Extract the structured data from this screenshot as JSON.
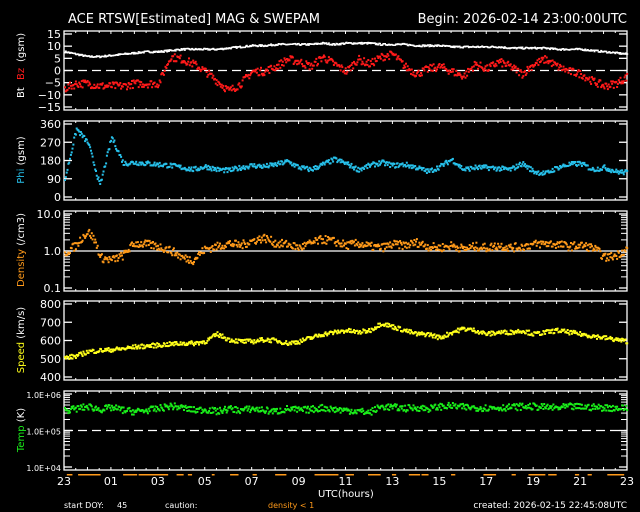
{
  "header": {
    "title": "ACE RTSW[Estimated] MAG & SWEPAM",
    "begin": "Begin: 2026-02-14 23:00:00UTC"
  },
  "footer": {
    "start_doy_label": "start DOY:",
    "start_doy_value": "45",
    "caution_label": "caution:",
    "caution_item": "density < 1",
    "created": "created: 2026-02-15 22:45:08UTC",
    "xlabel": "UTC(hours)"
  },
  "colors": {
    "background": "#000000",
    "axes": "#ffffff",
    "bt": "#ffffff",
    "bz": "#ff1a1a",
    "phi": "#27c0ea",
    "density": "#ff9a1a",
    "speed": "#ffff1a",
    "temp": "#1aee1a",
    "caution": "#ff9a1a"
  },
  "chart_data": [
    {
      "type": "scatter",
      "panel": "mag",
      "ylabel_parts": [
        "Bt",
        "Bz",
        "(gsm)"
      ],
      "ylabel_colors": [
        "#ffffff",
        "#ff1a1a",
        "#ffffff"
      ],
      "yticks": [
        15,
        10,
        5,
        0,
        -5,
        -10,
        -15
      ],
      "ylim": [
        -15,
        15
      ],
      "reference_line": {
        "y": 0,
        "style": "dashed"
      },
      "x_hours": [
        0,
        0.5,
        1,
        1.5,
        2,
        2.5,
        3,
        3.5,
        4,
        4.5,
        5,
        5.5,
        6,
        6.5,
        7,
        7.5,
        8,
        8.5,
        9,
        9.5,
        10,
        10.5,
        11,
        11.5,
        12,
        12.5,
        13,
        13.5,
        14,
        14.5,
        15,
        15.5,
        16,
        16.5,
        17,
        17.5,
        18,
        18.5,
        19,
        19.5,
        20,
        20.5,
        21,
        21.5,
        22,
        22.5,
        23,
        23.5,
        24
      ],
      "series": [
        {
          "name": "Bt",
          "values": [
            8,
            7,
            6,
            6,
            6.5,
            7,
            7.5,
            8,
            8,
            8.5,
            9,
            9,
            9,
            9,
            9.5,
            10,
            10.5,
            10.5,
            11,
            11,
            11,
            11,
            11.5,
            11,
            11.5,
            11.5,
            11.5,
            11,
            11,
            11,
            10.5,
            10.5,
            10.5,
            10,
            10,
            10,
            10,
            10,
            9.5,
            9.5,
            9.5,
            9.5,
            9,
            9,
            9,
            8.5,
            8,
            7.5,
            7
          ]
        },
        {
          "name": "Bz",
          "values": [
            -7,
            -5,
            -5,
            -6,
            -6,
            -6,
            -5,
            -5,
            -5,
            6,
            5,
            3,
            0,
            -4,
            -8,
            -5,
            0,
            0,
            2,
            5,
            4,
            2,
            6,
            3,
            0,
            5,
            3,
            6,
            7,
            2,
            -1,
            1,
            2,
            0,
            -2,
            3,
            1,
            4,
            2,
            -1,
            3,
            5,
            2,
            0,
            -1,
            -4,
            -6,
            -5,
            -2
          ]
        }
      ]
    },
    {
      "type": "scatter",
      "panel": "phi",
      "ylabel": "Phi (gsm)",
      "yticks": [
        360,
        270,
        180,
        90,
        0
      ],
      "ylim": [
        0,
        360
      ],
      "x_hours": [
        0,
        0.5,
        1,
        1.5,
        2,
        2.5,
        3,
        3.5,
        4,
        4.5,
        5,
        5.5,
        6,
        6.5,
        7,
        7.5,
        8,
        8.5,
        9,
        9.5,
        10,
        10.5,
        11,
        11.5,
        12,
        12.5,
        13,
        13.5,
        14,
        14.5,
        15,
        15.5,
        16,
        16.5,
        17,
        17.5,
        18,
        18.5,
        19,
        19.5,
        20,
        20.5,
        21,
        21.5,
        22,
        22.5,
        23,
        23.5,
        24
      ],
      "values": [
        90,
        340,
        270,
        60,
        300,
        170,
        175,
        170,
        165,
        160,
        150,
        140,
        155,
        140,
        135,
        150,
        160,
        155,
        165,
        180,
        150,
        140,
        165,
        190,
        170,
        140,
        160,
        175,
        160,
        165,
        150,
        130,
        155,
        190,
        140,
        150,
        150,
        145,
        140,
        170,
        130,
        120,
        150,
        165,
        170,
        140,
        150,
        130,
        125
      ]
    },
    {
      "type": "scatter",
      "panel": "density",
      "ylabel": "Density (/cm3)",
      "yscale": "log",
      "yticks": [
        10.0,
        1.0,
        0.1
      ],
      "ytick_labels": [
        "10.0",
        "1.0",
        "0.1"
      ],
      "ylim": [
        0.1,
        10.0
      ],
      "reference_line": {
        "y": 1.0,
        "style": "solid"
      },
      "x_hours": [
        0,
        0.5,
        1,
        1.5,
        2,
        2.5,
        3,
        3.5,
        4,
        4.5,
        5,
        5.5,
        6,
        6.5,
        7,
        7.5,
        8,
        8.5,
        9,
        9.5,
        10,
        10.5,
        11,
        11.5,
        12,
        12.5,
        13,
        13.5,
        14,
        14.5,
        15,
        15.5,
        16,
        16.5,
        17,
        17.5,
        18,
        18.5,
        19,
        19.5,
        20,
        20.5,
        21,
        21.5,
        22,
        22.5,
        23,
        23.5,
        24
      ],
      "values": [
        0.9,
        1.5,
        3.5,
        0.7,
        0.6,
        0.8,
        1.7,
        1.6,
        1.4,
        1.1,
        0.7,
        0.6,
        1.2,
        1.4,
        1.7,
        1.5,
        2.0,
        2.4,
        1.7,
        1.6,
        1.3,
        1.7,
        2.2,
        1.9,
        1.5,
        1.7,
        1.4,
        1.3,
        1.6,
        1.5,
        1.8,
        1.4,
        1.3,
        1.5,
        1.2,
        1.4,
        1.3,
        1.5,
        1.3,
        1.4,
        1.6,
        1.7,
        1.6,
        1.4,
        1.5,
        1.3,
        0.7,
        0.8,
        1.2
      ]
    },
    {
      "type": "scatter",
      "panel": "speed",
      "ylabel": "Speed (km/s)",
      "yticks": [
        800,
        700,
        600,
        500,
        400
      ],
      "ylim": [
        400,
        800
      ],
      "x_hours": [
        0,
        0.5,
        1,
        1.5,
        2,
        2.5,
        3,
        3.5,
        4,
        4.5,
        5,
        5.5,
        6,
        6.5,
        7,
        7.5,
        8,
        8.5,
        9,
        9.5,
        10,
        10.5,
        11,
        11.5,
        12,
        12.5,
        13,
        13.5,
        14,
        14.5,
        15,
        15.5,
        16,
        16.5,
        17,
        17.5,
        18,
        18.5,
        19,
        19.5,
        20,
        20.5,
        21,
        21.5,
        22,
        22.5,
        23,
        23.5,
        24
      ],
      "values": [
        510,
        520,
        545,
        550,
        555,
        560,
        570,
        575,
        580,
        585,
        590,
        590,
        600,
        640,
        610,
        600,
        600,
        610,
        605,
        590,
        600,
        620,
        640,
        650,
        660,
        650,
        660,
        700,
        680,
        660,
        640,
        640,
        620,
        650,
        670,
        660,
        640,
        650,
        650,
        660,
        640,
        650,
        660,
        650,
        640,
        630,
        620,
        610,
        600
      ]
    },
    {
      "type": "scatter",
      "panel": "temp",
      "ylabel": "Temp (K)",
      "yscale": "log",
      "yticks": [
        1000000,
        100000,
        10000
      ],
      "ytick_labels": [
        "1.0E+06",
        "1.0E+05",
        "1.0E+04"
      ],
      "ylim": [
        10000,
        1000000
      ],
      "reference_line": {
        "y": 100000,
        "style": "dashed"
      },
      "x_hours": [
        0,
        0.5,
        1,
        1.5,
        2,
        2.5,
        3,
        3.5,
        4,
        4.5,
        5,
        5.5,
        6,
        6.5,
        7,
        7.5,
        8,
        8.5,
        9,
        9.5,
        10,
        10.5,
        11,
        11.5,
        12,
        12.5,
        13,
        13.5,
        14,
        14.5,
        15,
        15.5,
        16,
        16.5,
        17,
        17.5,
        18,
        18.5,
        19,
        19.5,
        20,
        20.5,
        21,
        21.5,
        22,
        22.5,
        23,
        23.5,
        24
      ],
      "values": [
        380000,
        420000,
        480000,
        400000,
        450000,
        380000,
        350000,
        380000,
        420000,
        500000,
        450000,
        380000,
        400000,
        350000,
        420000,
        380000,
        420000,
        380000,
        350000,
        420000,
        380000,
        400000,
        450000,
        400000,
        380000,
        360000,
        330000,
        480000,
        460000,
        430000,
        450000,
        420000,
        480000,
        500000,
        460000,
        450000,
        440000,
        450000,
        460000,
        480000,
        480000,
        460000,
        440000,
        480000,
        470000,
        460000,
        450000,
        440000,
        430000
      ]
    }
  ],
  "xaxis": {
    "ticks": [
      "23",
      "01",
      "03",
      "05",
      "07",
      "09",
      "11",
      "13",
      "15",
      "17",
      "19",
      "21",
      "23"
    ],
    "range_hours": 24
  },
  "caution_segments_hours": [
    [
      0.2,
      0.6
    ],
    [
      1.0,
      2.6
    ],
    [
      4.2,
      5.2
    ],
    [
      5.3,
      7.4
    ],
    [
      8.0,
      8.5
    ],
    [
      8.8,
      9.1
    ],
    [
      10.5,
      10.7
    ],
    [
      11.8,
      12.4
    ],
    [
      13.4,
      13.7
    ],
    [
      15.0,
      15.8
    ],
    [
      17.8,
      19.5
    ],
    [
      20.0,
      20.6
    ],
    [
      21.6,
      22.5
    ],
    [
      23.3,
      23.6
    ],
    [
      24.5,
      25.3
    ],
    [
      25.4,
      25.9
    ],
    [
      27.5,
      27.8
    ],
    [
      29.8,
      30.7
    ],
    [
      31.8,
      32.1
    ],
    [
      33.0,
      34.2
    ],
    [
      34.4,
      35.0
    ],
    [
      36.3,
      36.6
    ],
    [
      37.2,
      37.5
    ],
    [
      38.6,
      39.8
    ]
  ]
}
